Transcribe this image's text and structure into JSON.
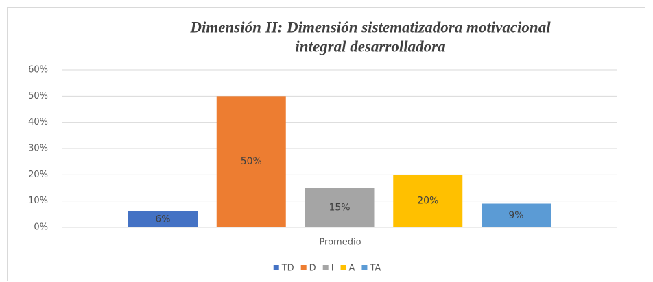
{
  "chart_data": {
    "type": "bar",
    "title": [
      "Dimensión II: Dimensión sistematizadora motivacional",
      "integral desarrolladora"
    ],
    "categories": [
      "Promedio"
    ],
    "series": [
      {
        "name": "TD",
        "color": "#4472c4",
        "values": [
          6
        ],
        "value_labels": [
          "6%"
        ]
      },
      {
        "name": "D",
        "color": "#ed7d31",
        "values": [
          50
        ],
        "value_labels": [
          "50%"
        ]
      },
      {
        "name": "I",
        "color": "#a5a5a5",
        "values": [
          15
        ],
        "value_labels": [
          "15%"
        ]
      },
      {
        "name": "A",
        "color": "#ffc000",
        "values": [
          20
        ],
        "value_labels": [
          "20%"
        ]
      },
      {
        "name": "TA",
        "color": "#5b9bd5",
        "values": [
          9
        ],
        "value_labels": [
          "9%"
        ]
      }
    ],
    "ylim": [
      0,
      60
    ],
    "yticks": [
      {
        "value": 0,
        "label": "0%"
      },
      {
        "value": 10,
        "label": "10%"
      },
      {
        "value": 20,
        "label": "20%"
      },
      {
        "value": 30,
        "label": "30%"
      },
      {
        "value": 40,
        "label": "40%"
      },
      {
        "value": 50,
        "label": "50%"
      },
      {
        "value": 60,
        "label": "60%"
      }
    ],
    "grid": true,
    "legend": "bottom"
  }
}
